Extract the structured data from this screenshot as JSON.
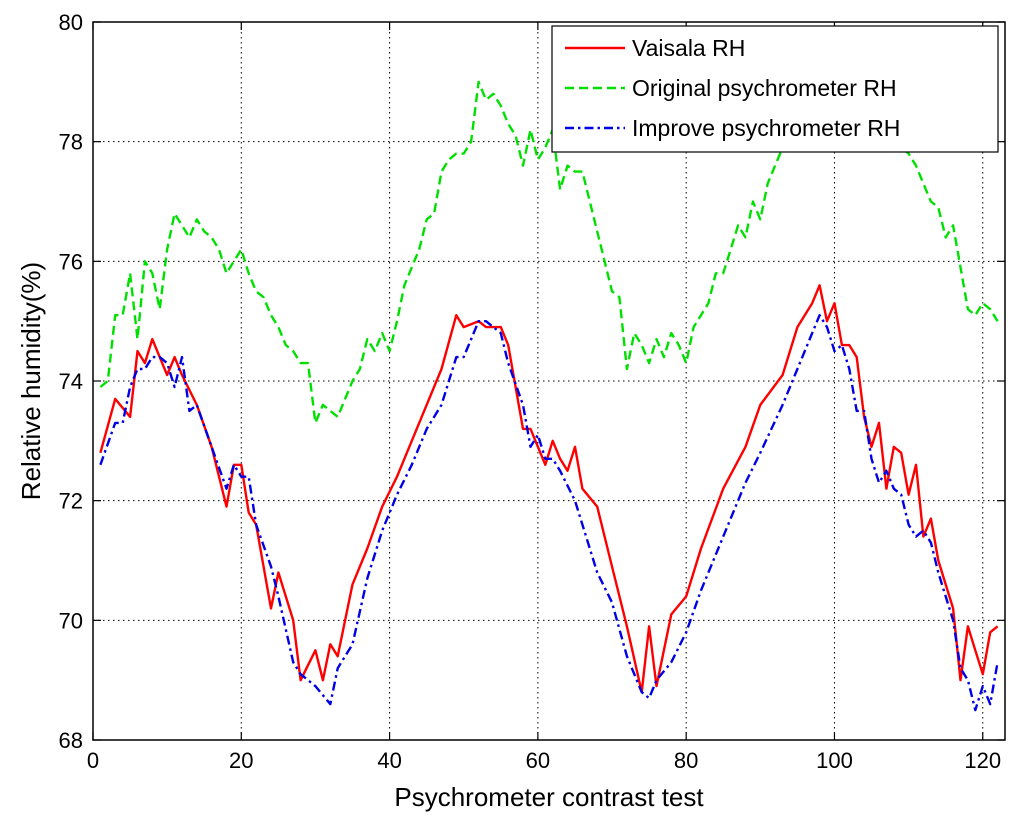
{
  "chart_data": {
    "type": "line",
    "title": "",
    "xlabel": "Psychrometer contrast test",
    "ylabel": "Relative humidity(%)",
    "xlim": [
      0,
      123
    ],
    "ylim": [
      68,
      80
    ],
    "xticks": [
      0,
      20,
      40,
      60,
      80,
      100,
      120
    ],
    "yticks": [
      68,
      70,
      72,
      74,
      76,
      78,
      80
    ],
    "grid": true,
    "legend_position": "top-right",
    "series": [
      {
        "name": "Vaisala RH",
        "color": "#ff0000",
        "style": "solid",
        "x": [
          1,
          3,
          5,
          6,
          7,
          8,
          10,
          11,
          12,
          14,
          16,
          18,
          19,
          20,
          21,
          22,
          24,
          25,
          27,
          28,
          30,
          31,
          32,
          33,
          35,
          37,
          39,
          41,
          44,
          47,
          49,
          50,
          52,
          53,
          55,
          56,
          58,
          59,
          60,
          61,
          62,
          63,
          64,
          65,
          66,
          68,
          70,
          72,
          74,
          75,
          76,
          78,
          80,
          82,
          85,
          88,
          90,
          93,
          95,
          97,
          98,
          99,
          100,
          101,
          102,
          103,
          104,
          105,
          106,
          107,
          108,
          109,
          110,
          111,
          112,
          113,
          114,
          116,
          117,
          118,
          119,
          120,
          121,
          122
        ],
        "values": [
          72.8,
          73.7,
          73.4,
          74.5,
          74.3,
          74.7,
          74.1,
          74.4,
          74.1,
          73.6,
          72.9,
          71.9,
          72.6,
          72.6,
          71.8,
          71.6,
          70.2,
          70.8,
          70.0,
          69.0,
          69.5,
          69.0,
          69.6,
          69.4,
          70.6,
          71.2,
          71.9,
          72.4,
          73.3,
          74.2,
          75.1,
          74.9,
          75.0,
          74.9,
          74.9,
          74.6,
          73.2,
          73.2,
          72.9,
          72.6,
          73.0,
          72.7,
          72.5,
          72.9,
          72.2,
          71.9,
          70.9,
          69.9,
          68.8,
          69.9,
          68.9,
          70.1,
          70.4,
          71.2,
          72.2,
          72.9,
          73.6,
          74.1,
          74.9,
          75.3,
          75.6,
          75.0,
          75.3,
          74.6,
          74.6,
          74.4,
          73.4,
          72.9,
          73.3,
          72.2,
          72.9,
          72.8,
          72.1,
          72.6,
          71.4,
          71.7,
          71.0,
          70.2,
          69.0,
          69.9,
          69.5,
          69.1,
          69.8,
          69.9
        ]
      },
      {
        "name": "Original psychrometer RH",
        "color": "#00e000",
        "style": "dashed",
        "x": [
          1,
          2,
          3,
          4,
          5,
          6,
          7,
          8,
          9,
          10,
          11,
          12,
          13,
          14,
          15,
          16,
          17,
          18,
          19,
          20,
          21,
          22,
          23,
          24,
          25,
          26,
          27,
          28,
          29,
          30,
          31,
          32,
          33,
          34,
          35,
          36,
          37,
          38,
          39,
          40,
          41,
          42,
          43,
          44,
          45,
          46,
          47,
          48,
          49,
          50,
          51,
          52,
          53,
          54,
          55,
          56,
          57,
          58,
          59,
          60,
          61,
          62,
          63,
          64,
          65,
          66,
          67,
          68,
          69,
          70,
          71,
          72,
          73,
          74,
          75,
          76,
          77,
          78,
          79,
          80,
          81,
          82,
          83,
          84,
          85,
          86,
          87,
          88,
          89,
          90,
          91,
          92,
          93,
          94,
          95,
          96,
          97,
          98,
          99,
          100,
          101,
          102,
          103,
          104,
          105,
          106,
          107,
          108,
          109,
          110,
          111,
          112,
          113,
          114,
          115,
          116,
          117,
          118,
          119,
          120,
          121,
          122
        ],
        "values": [
          73.9,
          74.0,
          75.1,
          75.1,
          75.8,
          74.7,
          76.0,
          75.8,
          75.2,
          76.2,
          76.8,
          76.6,
          76.4,
          76.7,
          76.5,
          76.4,
          76.2,
          75.8,
          76.0,
          76.2,
          75.8,
          75.5,
          75.4,
          75.1,
          74.9,
          74.6,
          74.5,
          74.3,
          74.3,
          73.3,
          73.6,
          73.5,
          73.4,
          73.7,
          74.0,
          74.2,
          74.7,
          74.5,
          74.8,
          74.5,
          75.0,
          75.6,
          75.9,
          76.2,
          76.7,
          76.8,
          77.5,
          77.7,
          77.8,
          77.8,
          78.0,
          79.0,
          78.7,
          78.8,
          78.6,
          78.3,
          78.1,
          77.6,
          78.2,
          77.7,
          77.9,
          78.2,
          77.2,
          77.6,
          77.5,
          77.5,
          77.0,
          76.5,
          76.0,
          75.5,
          75.4,
          74.2,
          74.8,
          74.6,
          74.3,
          74.7,
          74.4,
          74.8,
          74.6,
          74.3,
          74.9,
          75.1,
          75.3,
          75.8,
          75.8,
          76.2,
          76.6,
          76.4,
          77.0,
          76.7,
          77.3,
          77.6,
          77.9,
          77.9,
          78.0,
          78.0,
          78.0,
          78.0,
          78.0,
          78.0,
          78.0,
          78.0,
          78.0,
          78.0,
          78.0,
          78.0,
          78.0,
          77.9,
          77.9,
          77.8,
          77.6,
          77.3,
          77.0,
          76.9,
          76.4,
          76.6,
          75.9,
          75.2,
          75.1,
          75.3,
          75.2,
          75.0
        ]
      },
      {
        "name": "Improve psychrometer RH",
        "color": "#0000e6",
        "style": "dashdot",
        "x": [
          1,
          3,
          4,
          5,
          6,
          7,
          8,
          9,
          10,
          11,
          12,
          13,
          14,
          16,
          18,
          19,
          20,
          21,
          22,
          24,
          25,
          27,
          28,
          30,
          32,
          33,
          35,
          37,
          39,
          41,
          43,
          45,
          47,
          49,
          50,
          52,
          53,
          55,
          56,
          58,
          59,
          60,
          61,
          62,
          63,
          65,
          66,
          68,
          70,
          72,
          74,
          75,
          76,
          78,
          80,
          82,
          85,
          88,
          90,
          93,
          95,
          97,
          98,
          99,
          100,
          101,
          102,
          103,
          104,
          105,
          106,
          107,
          108,
          109,
          110,
          111,
          112,
          113,
          114,
          116,
          117,
          118,
          119,
          120,
          121,
          122
        ],
        "values": [
          72.6,
          73.3,
          73.3,
          73.9,
          74.2,
          74.2,
          74.4,
          74.4,
          74.3,
          73.9,
          74.4,
          73.5,
          73.6,
          72.9,
          72.2,
          72.6,
          72.4,
          72.4,
          71.6,
          70.9,
          70.4,
          69.3,
          69.1,
          68.9,
          68.6,
          69.2,
          69.6,
          70.7,
          71.5,
          72.1,
          72.6,
          73.2,
          73.6,
          74.4,
          74.4,
          75.0,
          75.0,
          74.8,
          74.3,
          73.6,
          72.9,
          73.1,
          72.7,
          72.7,
          72.5,
          72.0,
          71.6,
          70.8,
          70.3,
          69.4,
          68.8,
          68.7,
          69.0,
          69.3,
          69.8,
          70.5,
          71.4,
          72.3,
          72.8,
          73.6,
          74.2,
          74.8,
          75.1,
          74.9,
          74.5,
          74.6,
          74.2,
          73.5,
          73.5,
          72.7,
          72.3,
          72.5,
          72.2,
          72.1,
          71.6,
          71.4,
          71.5,
          71.3,
          70.8,
          70.0,
          69.2,
          69.0,
          68.5,
          68.9,
          68.6,
          69.3
        ]
      }
    ]
  }
}
